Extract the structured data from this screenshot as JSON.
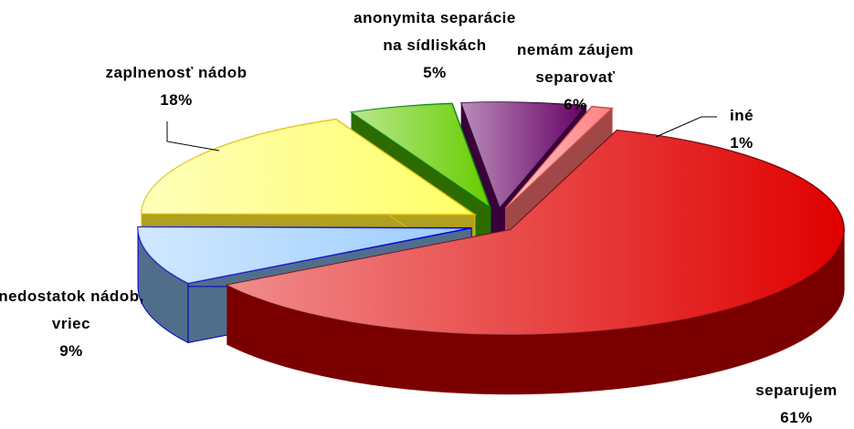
{
  "chart_data": {
    "type": "pie3d",
    "categories": [
      "iné",
      "separujem",
      "nedostatok nádob, vriec",
      "zaplnenosť nádob",
      "anonymita separácie na sídliskách",
      "nemám záujem separovať"
    ],
    "values": [
      1,
      61,
      9,
      18,
      5,
      6
    ],
    "value_labels": [
      "1%",
      "61%",
      "9%",
      "18%",
      "5%",
      "6%"
    ],
    "colors": [
      "#ff8080",
      "#e00000",
      "#99ccff",
      "#ffff66",
      "#66cc00",
      "#660066"
    ]
  }
}
